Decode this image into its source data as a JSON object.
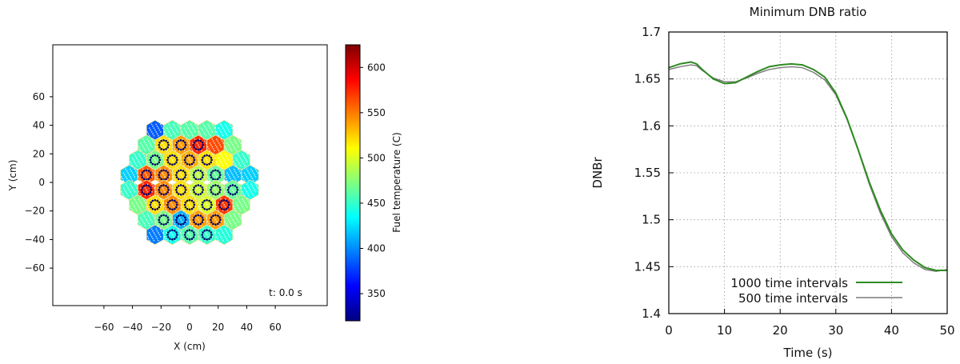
{
  "chart_data": [
    {
      "type": "heatmap",
      "xlabel": "X (cm)",
      "ylabel": "Y (cm)",
      "colorbar_label": "Fuel temperature (C)",
      "annotation": "t: 0.0 s",
      "xlim": [
        -72,
        72
      ],
      "ylim": [
        -72,
        72
      ],
      "x_ticks": [
        "−60",
        "−40",
        "−20",
        "0",
        "20",
        "40",
        "60"
      ],
      "y_ticks": [
        "60",
        "40",
        "20",
        "0",
        "−20",
        "−40",
        "−60"
      ],
      "colorbar_ticks": [
        "600",
        "550",
        "500",
        "450",
        "400",
        "350"
      ],
      "colorbar_range": [
        320,
        625
      ],
      "colormap": [
        "#00007f",
        "#0000ff",
        "#007fff",
        "#00ffff",
        "#7fff7f",
        "#ffff00",
        "#ff7f00",
        "#ff0000",
        "#7f0000"
      ],
      "assembly_temps": [
        [
          385,
          455,
          460,
          460,
          440,
          null,
          null
        ],
        [
          460,
          520,
          540,
          575,
          565,
          470,
          null
        ],
        [
          450,
          470,
          520,
          535,
          520,
          510,
          450
        ],
        [
          420,
          560,
          545,
          520,
          490,
          465,
          415,
          420
        ],
        [
          450,
          575,
          545,
          520,
          495,
          480,
          465,
          440
        ],
        [
          470,
          520,
          545,
          520,
          500,
          570,
          470
        ],
        [
          455,
          470,
          410,
          540,
          540,
          470
        ],
        [
          395,
          440,
          460,
          450,
          445
        ]
      ],
      "guide_tube_assemblies": [
        [
          false,
          false,
          false,
          false,
          false
        ],
        [
          false,
          true,
          true,
          true,
          false,
          false
        ],
        [
          false,
          true,
          true,
          true,
          true,
          false
        ],
        [
          false,
          true,
          true,
          true,
          true,
          true,
          false
        ],
        [
          false,
          true,
          true,
          true,
          true,
          true,
          true,
          false
        ],
        [
          false,
          true,
          true,
          true,
          true,
          true,
          false
        ],
        [
          false,
          true,
          true,
          true,
          true,
          false
        ],
        [
          false,
          true,
          true,
          true,
          false
        ]
      ]
    },
    {
      "type": "line",
      "title": "Minimum DNB ratio",
      "xlabel": "Time (s)",
      "ylabel": "DNBr",
      "xlim": [
        0,
        50
      ],
      "ylim": [
        1.4,
        1.7
      ],
      "x_ticks": [
        0,
        10,
        20,
        30,
        40,
        50
      ],
      "y_ticks": [
        "1.7",
        "1.65",
        "1.6",
        "1.55",
        "1.5",
        "1.45",
        "1.4"
      ],
      "grid": true,
      "legend_position": "bottom-left",
      "series": [
        {
          "name": "1000 time intervals",
          "color": "#2e8b22",
          "x": [
            0,
            2,
            4,
            5,
            6,
            8,
            10,
            12,
            14,
            16,
            18,
            20,
            22,
            24,
            26,
            28,
            30,
            32,
            34,
            36,
            38,
            40,
            42,
            44,
            46,
            48,
            50
          ],
          "y": [
            1.662,
            1.666,
            1.668,
            1.666,
            1.66,
            1.65,
            1.645,
            1.646,
            1.652,
            1.658,
            1.663,
            1.665,
            1.666,
            1.665,
            1.66,
            1.652,
            1.635,
            1.608,
            1.575,
            1.54,
            1.51,
            1.485,
            1.468,
            1.457,
            1.449,
            1.446,
            1.446
          ]
        },
        {
          "name": "500 time intervals",
          "color": "#7a7a7a",
          "x": [
            0,
            2,
            4,
            5,
            6,
            8,
            10,
            12,
            14,
            16,
            18,
            20,
            22,
            24,
            26,
            28,
            30,
            32,
            34,
            36,
            38,
            40,
            42,
            44,
            46,
            48,
            50
          ],
          "y": [
            1.66,
            1.663,
            1.665,
            1.664,
            1.659,
            1.651,
            1.647,
            1.647,
            1.651,
            1.656,
            1.66,
            1.662,
            1.663,
            1.662,
            1.657,
            1.649,
            1.633,
            1.607,
            1.574,
            1.538,
            1.507,
            1.482,
            1.465,
            1.454,
            1.447,
            1.445,
            1.447
          ]
        }
      ]
    }
  ]
}
